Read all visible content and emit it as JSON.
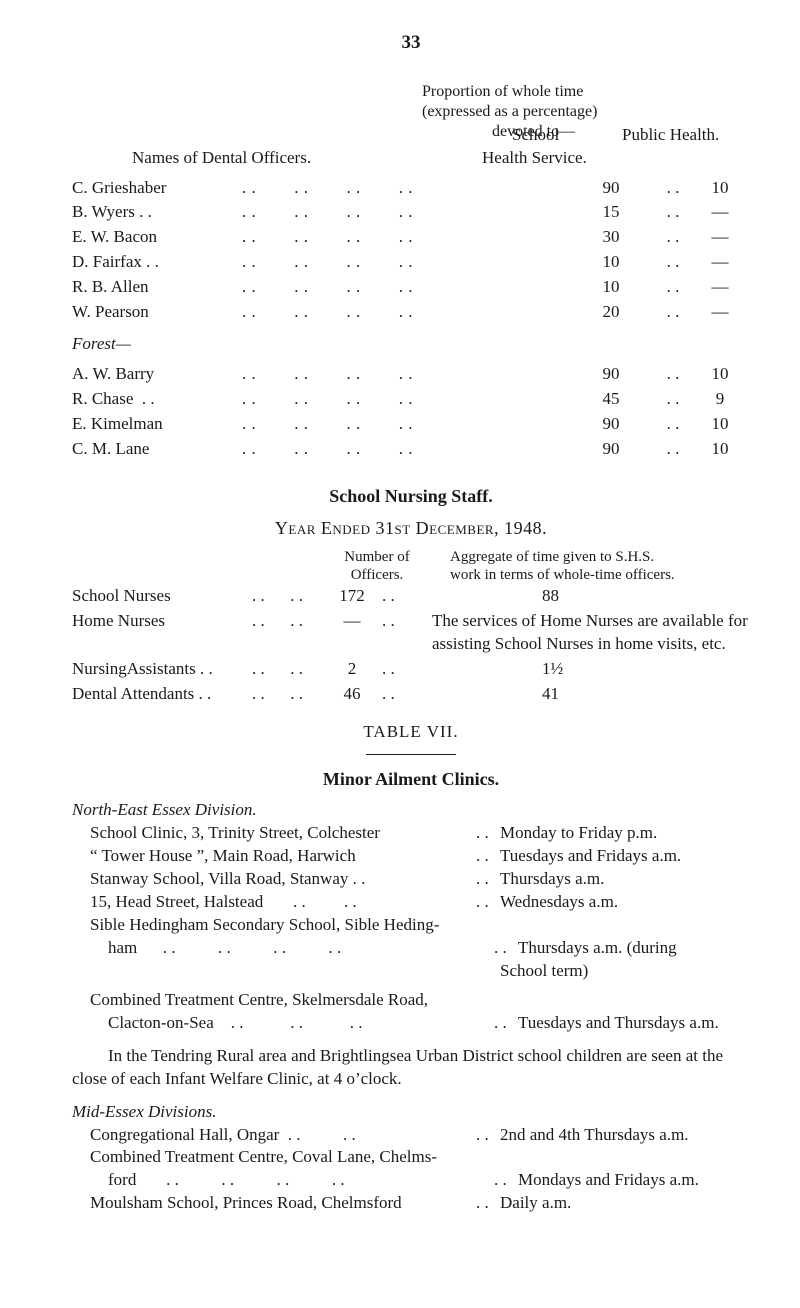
{
  "page_number": "33",
  "proportion_header": {
    "l1": "Proportion of whole time",
    "l2": "(expressed as a percentage)",
    "l3": "devoted to—",
    "names_label": "Names of Dental Officers.",
    "school_label": "School",
    "hs_label": "Health Service.",
    "ph_label": "Public Health."
  },
  "officers_block1": [
    {
      "name": "C. Grieshaber",
      "hs": "90",
      "ph": "10"
    },
    {
      "name": "B. Wyers . .",
      "hs": "15",
      "ph": "—"
    },
    {
      "name": "E. W. Bacon",
      "hs": "30",
      "ph": "—"
    },
    {
      "name": "D. Fairfax . .",
      "hs": "10",
      "ph": "—"
    },
    {
      "name": "R. B. Allen",
      "hs": "10",
      "ph": "—"
    },
    {
      "name": "W. Pearson",
      "hs": "20",
      "ph": "—"
    }
  ],
  "forest_label": "Forest—",
  "officers_block2": [
    {
      "name": "A. W. Barry",
      "hs": "90",
      "ph": "10"
    },
    {
      "name": "R. Chase  . .",
      "hs": "45",
      "ph": "9"
    },
    {
      "name": "E. Kimelman",
      "hs": "90",
      "ph": "10"
    },
    {
      "name": "C. M. Lane",
      "hs": "90",
      "ph": "10"
    }
  ],
  "nursing_title": "School Nursing Staff.",
  "nursing_subtitle": "Year Ended 31st December, 1948.",
  "nursing_headers": {
    "num_l1": "Number of",
    "num_l2": "Officers.",
    "agg_l1": "Aggregate of time given to S.H.S.",
    "agg_l2": "work in terms of whole-time officers."
  },
  "nursing_rows": [
    {
      "label": "School Nurses",
      "num": "172",
      "agg": "88"
    },
    {
      "label": "Home Nurses",
      "num": "—",
      "agg": "The services of Home Nurses are available for assisting School Nurses in home visits, etc."
    },
    {
      "label": "NursingAssistants  . .",
      "num": "2",
      "agg": "1½"
    },
    {
      "label": "Dental Attendants . .",
      "num": "46",
      "agg": "41"
    }
  ],
  "table_vii": "TABLE   VII.",
  "minor_title": "Minor Ailment Clinics.",
  "ne_division": "North-East Essex Division.",
  "ne_rows": [
    {
      "left": "School Clinic, 3, Trinity Street, Colchester",
      "right": "Monday to Friday p.m."
    },
    {
      "left": "“ Tower House ”, Main Road, Harwich",
      "right": "Tuesdays and Fridays a.m."
    },
    {
      "left": "Stanway School, Villa Road, Stanway . .",
      "right": "Thursdays a.m."
    },
    {
      "left": "15, Head Street, Halstead       . .         . .",
      "right": "Wednesdays a.m."
    }
  ],
  "sible_l1": "Sible Hedingham Secondary School, Sible Heding-",
  "sible_l2_left": "ham      . .          . .          . .          . .",
  "sible_l2_right": "Thursdays a.m. (during",
  "sible_l3_right": "School term)",
  "combined_l1": "Combined Treatment Centre, Skelmersdale Road,",
  "combined_l2_left": "Clacton-on-Sea    . .           . .           . .",
  "combined_l2_right": "Tuesdays and Thursdays a.m.",
  "tendring_para": "In the Tendring Rural area and Brightlingsea Urban District school children are seen at the close of each Infant Welfare Clinic, at 4 o’clock.",
  "mid_division": "Mid-Essex Divisions.",
  "mid_rows": [
    {
      "left": "Congregational Hall, Ongar  . .          . .",
      "dots": ". .",
      "right": "2nd and 4th Thursdays a.m."
    }
  ],
  "coval_l1": "Combined Treatment Centre, Coval Lane, Chelms-",
  "coval_l2_left": "ford       . .          . .          . .          . .",
  "coval_l2_right": "Mondays and Fridays a.m.",
  "moulsham_left": "Moulsham School, Princes Road, Chelmsford",
  "moulsham_right": "Daily a.m."
}
